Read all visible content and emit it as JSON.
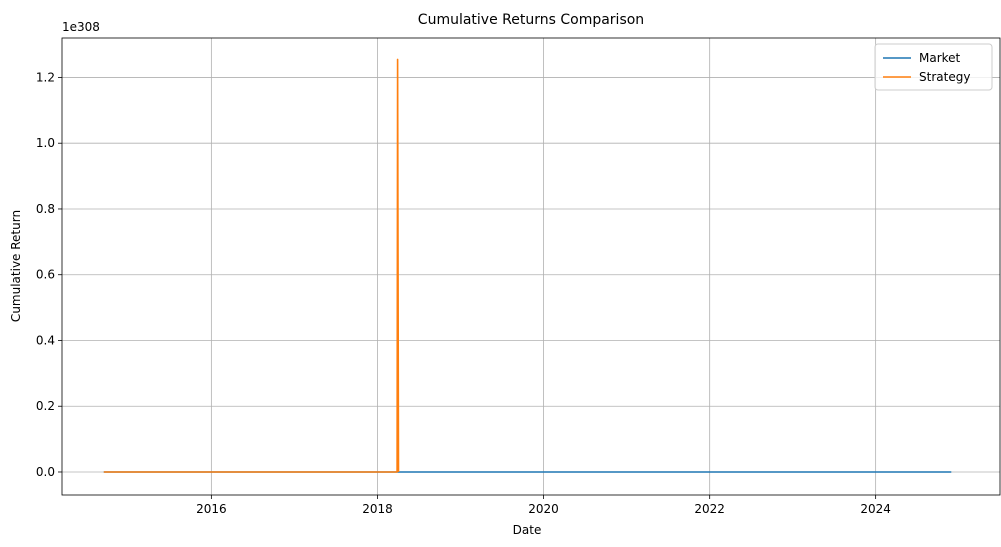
{
  "chart_data": {
    "type": "line",
    "title": "Cumulative Returns Comparison",
    "xlabel": "Date",
    "ylabel": "Cumulative Return",
    "y_offset_text": "1e308",
    "xlim": [
      "2014-03-15",
      "2025-07-01"
    ],
    "ylim": [
      -0.07,
      1.32
    ],
    "x_ticks": [
      {
        "value": "2016-01-01",
        "label": "2016"
      },
      {
        "value": "2018-01-01",
        "label": "2018"
      },
      {
        "value": "2020-01-01",
        "label": "2020"
      },
      {
        "value": "2022-01-01",
        "label": "2022"
      },
      {
        "value": "2024-01-01",
        "label": "2024"
      }
    ],
    "y_ticks": [
      {
        "value": 0.0,
        "label": "0.0"
      },
      {
        "value": 0.2,
        "label": "0.2"
      },
      {
        "value": 0.4,
        "label": "0.4"
      },
      {
        "value": 0.6,
        "label": "0.6"
      },
      {
        "value": 0.8,
        "label": "0.8"
      },
      {
        "value": 1.0,
        "label": "1.0"
      },
      {
        "value": 1.2,
        "label": "1.2"
      }
    ],
    "grid": true,
    "legend_position": "top-right",
    "series": [
      {
        "name": "Market",
        "color": "#1f77b4",
        "points": [
          {
            "x": "2014-09-15",
            "y": 0.0
          },
          {
            "x": "2024-11-29",
            "y": 0.0
          }
        ]
      },
      {
        "name": "Strategy",
        "color": "#ff7f0e",
        "points": [
          {
            "x": "2014-09-15",
            "y": 0.0
          },
          {
            "x": "2018-03-28",
            "y": 0.0
          },
          {
            "x": "2018-03-30",
            "y": 1.255
          },
          {
            "x": "2018-04-03",
            "y": 0.0
          }
        ]
      }
    ]
  }
}
